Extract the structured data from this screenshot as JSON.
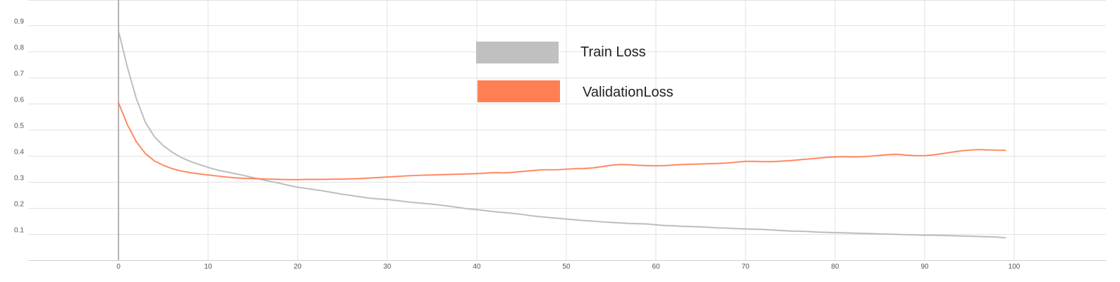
{
  "chart_data": {
    "type": "line",
    "title": "",
    "xlabel": "",
    "ylabel": "",
    "xlim": [
      -10,
      110
    ],
    "ylim": [
      0,
      1
    ],
    "x_ticks": [
      0,
      10,
      20,
      30,
      40,
      50,
      60,
      70,
      80,
      90,
      100
    ],
    "y_ticks": [
      0.1,
      0.2,
      0.3,
      0.4,
      0.5,
      0.6,
      0.7,
      0.8,
      0.9
    ],
    "grid": true,
    "legend_position": "top-center",
    "legend": [
      {
        "label": "Train Loss",
        "color": "#c0c0c0"
      },
      {
        "label": "ValidationLoss",
        "color": "#ff7f55"
      }
    ],
    "x": [
      0,
      1,
      2,
      3,
      4,
      5,
      6,
      7,
      8,
      9,
      10,
      11,
      12,
      13,
      14,
      15,
      16,
      17,
      18,
      19,
      20,
      21,
      22,
      23,
      24,
      25,
      26,
      27,
      28,
      29,
      30,
      31,
      32,
      33,
      34,
      35,
      36,
      37,
      38,
      39,
      40,
      41,
      42,
      43,
      44,
      45,
      46,
      47,
      48,
      49,
      50,
      51,
      52,
      53,
      54,
      55,
      56,
      57,
      58,
      59,
      60,
      61,
      62,
      63,
      64,
      65,
      66,
      67,
      68,
      69,
      70,
      71,
      72,
      73,
      74,
      75,
      76,
      77,
      78,
      79,
      80,
      81,
      82,
      83,
      84,
      85,
      86,
      87,
      88,
      89,
      90,
      91,
      92,
      93,
      94,
      95,
      96,
      97,
      98,
      99
    ],
    "series": [
      {
        "name": "Train Loss",
        "color": "#b8b8b8",
        "values": [
          0.88,
          0.74,
          0.62,
          0.53,
          0.475,
          0.44,
          0.415,
          0.395,
          0.38,
          0.368,
          0.357,
          0.347,
          0.34,
          0.333,
          0.326,
          0.318,
          0.31,
          0.303,
          0.296,
          0.288,
          0.281,
          0.276,
          0.271,
          0.266,
          0.26,
          0.254,
          0.249,
          0.244,
          0.239,
          0.236,
          0.234,
          0.23,
          0.226,
          0.222,
          0.219,
          0.216,
          0.212,
          0.208,
          0.203,
          0.198,
          0.195,
          0.191,
          0.187,
          0.184,
          0.181,
          0.177,
          0.172,
          0.168,
          0.165,
          0.162,
          0.159,
          0.156,
          0.153,
          0.151,
          0.148,
          0.146,
          0.144,
          0.142,
          0.141,
          0.14,
          0.137,
          0.134,
          0.133,
          0.131,
          0.13,
          0.129,
          0.127,
          0.125,
          0.124,
          0.122,
          0.121,
          0.12,
          0.119,
          0.117,
          0.115,
          0.113,
          0.112,
          0.111,
          0.109,
          0.108,
          0.107,
          0.106,
          0.105,
          0.104,
          0.103,
          0.102,
          0.101,
          0.1,
          0.099,
          0.098,
          0.097,
          0.097,
          0.096,
          0.095,
          0.094,
          0.093,
          0.092,
          0.091,
          0.09,
          0.087
        ]
      },
      {
        "name": "ValidationLoss",
        "color": "#ff7f55",
        "values": [
          0.605,
          0.52,
          0.455,
          0.41,
          0.382,
          0.365,
          0.352,
          0.343,
          0.337,
          0.332,
          0.328,
          0.324,
          0.32,
          0.317,
          0.315,
          0.314,
          0.313,
          0.312,
          0.311,
          0.31,
          0.31,
          0.311,
          0.311,
          0.311,
          0.312,
          0.312,
          0.313,
          0.314,
          0.316,
          0.318,
          0.32,
          0.322,
          0.324,
          0.326,
          0.327,
          0.328,
          0.329,
          0.33,
          0.331,
          0.332,
          0.333,
          0.335,
          0.337,
          0.336,
          0.338,
          0.341,
          0.344,
          0.347,
          0.348,
          0.348,
          0.35,
          0.352,
          0.353,
          0.355,
          0.36,
          0.365,
          0.368,
          0.367,
          0.365,
          0.364,
          0.363,
          0.364,
          0.366,
          0.368,
          0.369,
          0.37,
          0.371,
          0.372,
          0.374,
          0.377,
          0.38,
          0.38,
          0.379,
          0.379,
          0.381,
          0.383,
          0.386,
          0.389,
          0.392,
          0.395,
          0.397,
          0.398,
          0.397,
          0.398,
          0.4,
          0.403,
          0.406,
          0.407,
          0.404,
          0.402,
          0.402,
          0.405,
          0.41,
          0.415,
          0.42,
          0.423,
          0.425,
          0.424,
          0.423,
          0.422
        ]
      }
    ]
  }
}
